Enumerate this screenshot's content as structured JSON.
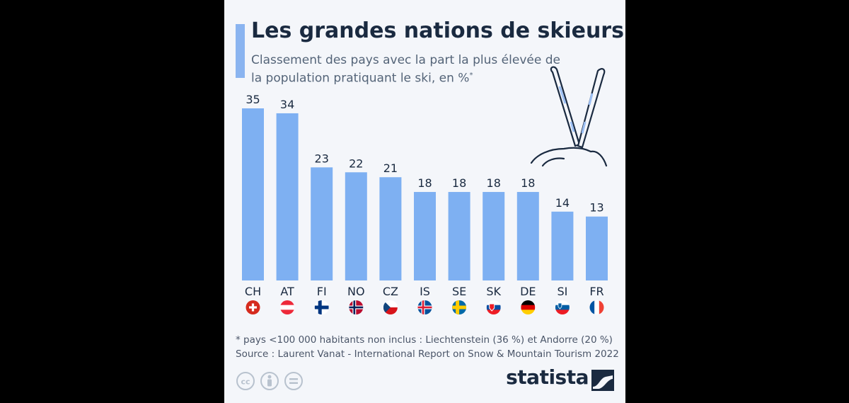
{
  "header": {
    "title": "Les grandes nations de skieurs",
    "subtitle": "Classement des pays avec la part la plus élevée de la population pratiquant le ski, en %",
    "subtitle_mark": "*"
  },
  "chart_data": {
    "type": "bar",
    "categories": [
      "CH",
      "AT",
      "FI",
      "NO",
      "CZ",
      "IS",
      "SE",
      "SK",
      "DE",
      "SI",
      "FR"
    ],
    "values": [
      35,
      34,
      23,
      22,
      21,
      18,
      18,
      18,
      18,
      14,
      13
    ],
    "ylim": [
      0,
      35
    ],
    "grid": false,
    "bar_color": "#7eb0f2",
    "data_labels": true
  },
  "flags": [
    "flag-ch-icon",
    "flag-at-icon",
    "flag-fi-icon",
    "flag-no-icon",
    "flag-cz-icon",
    "flag-is-icon",
    "flag-se-icon",
    "flag-sk-icon",
    "flag-de-icon",
    "flag-si-icon",
    "flag-fr-icon"
  ],
  "footnote": {
    "note": "* pays <100 000 habitants non inclus : Liechtenstein (36 %) et Andorre (20 %)",
    "source": "Source : Laurent Vanat - International Report on Snow & Mountain Tourism 2022"
  },
  "brand": {
    "name": "statista"
  },
  "license_icons": [
    "creative-commons-icon",
    "attribution-icon",
    "no-derivatives-icon"
  ]
}
